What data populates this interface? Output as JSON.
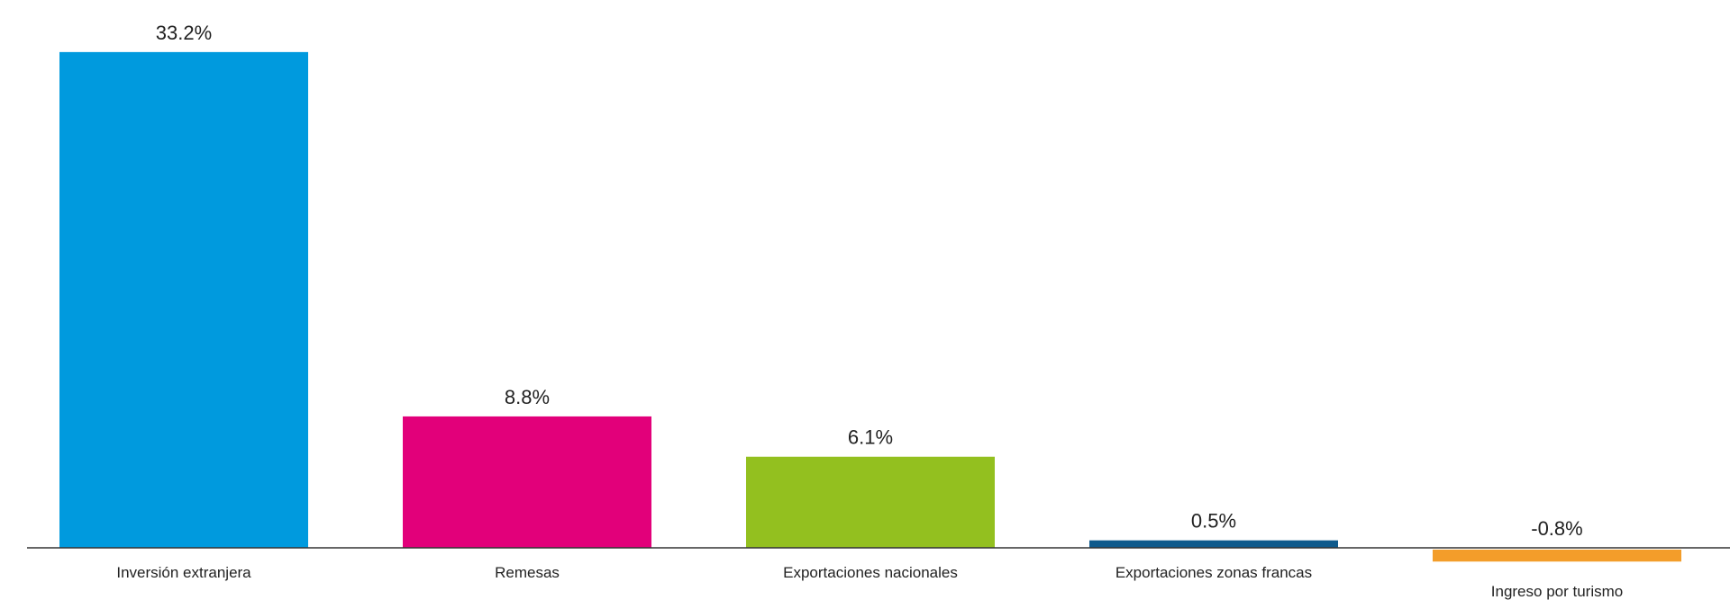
{
  "chart_data": {
    "type": "bar",
    "title": "",
    "xlabel": "",
    "ylabel": "",
    "categories": [
      "Inversión extranjera",
      "Remesas",
      "Exportaciones nacionales",
      "Exportaciones zonas francas",
      "Ingreso por turismo"
    ],
    "values": [
      33.2,
      8.8,
      6.1,
      0.5,
      -0.8
    ],
    "value_labels": [
      "33.2%",
      "8.8%",
      "6.1%",
      "0.5%",
      "-0.8%"
    ],
    "colors": [
      "#009ade",
      "#e2007a",
      "#93c01f",
      "#0f5a8c",
      "#f39d2a"
    ],
    "ylim": [
      -1.5,
      35
    ],
    "grid": false,
    "legend": "none"
  }
}
